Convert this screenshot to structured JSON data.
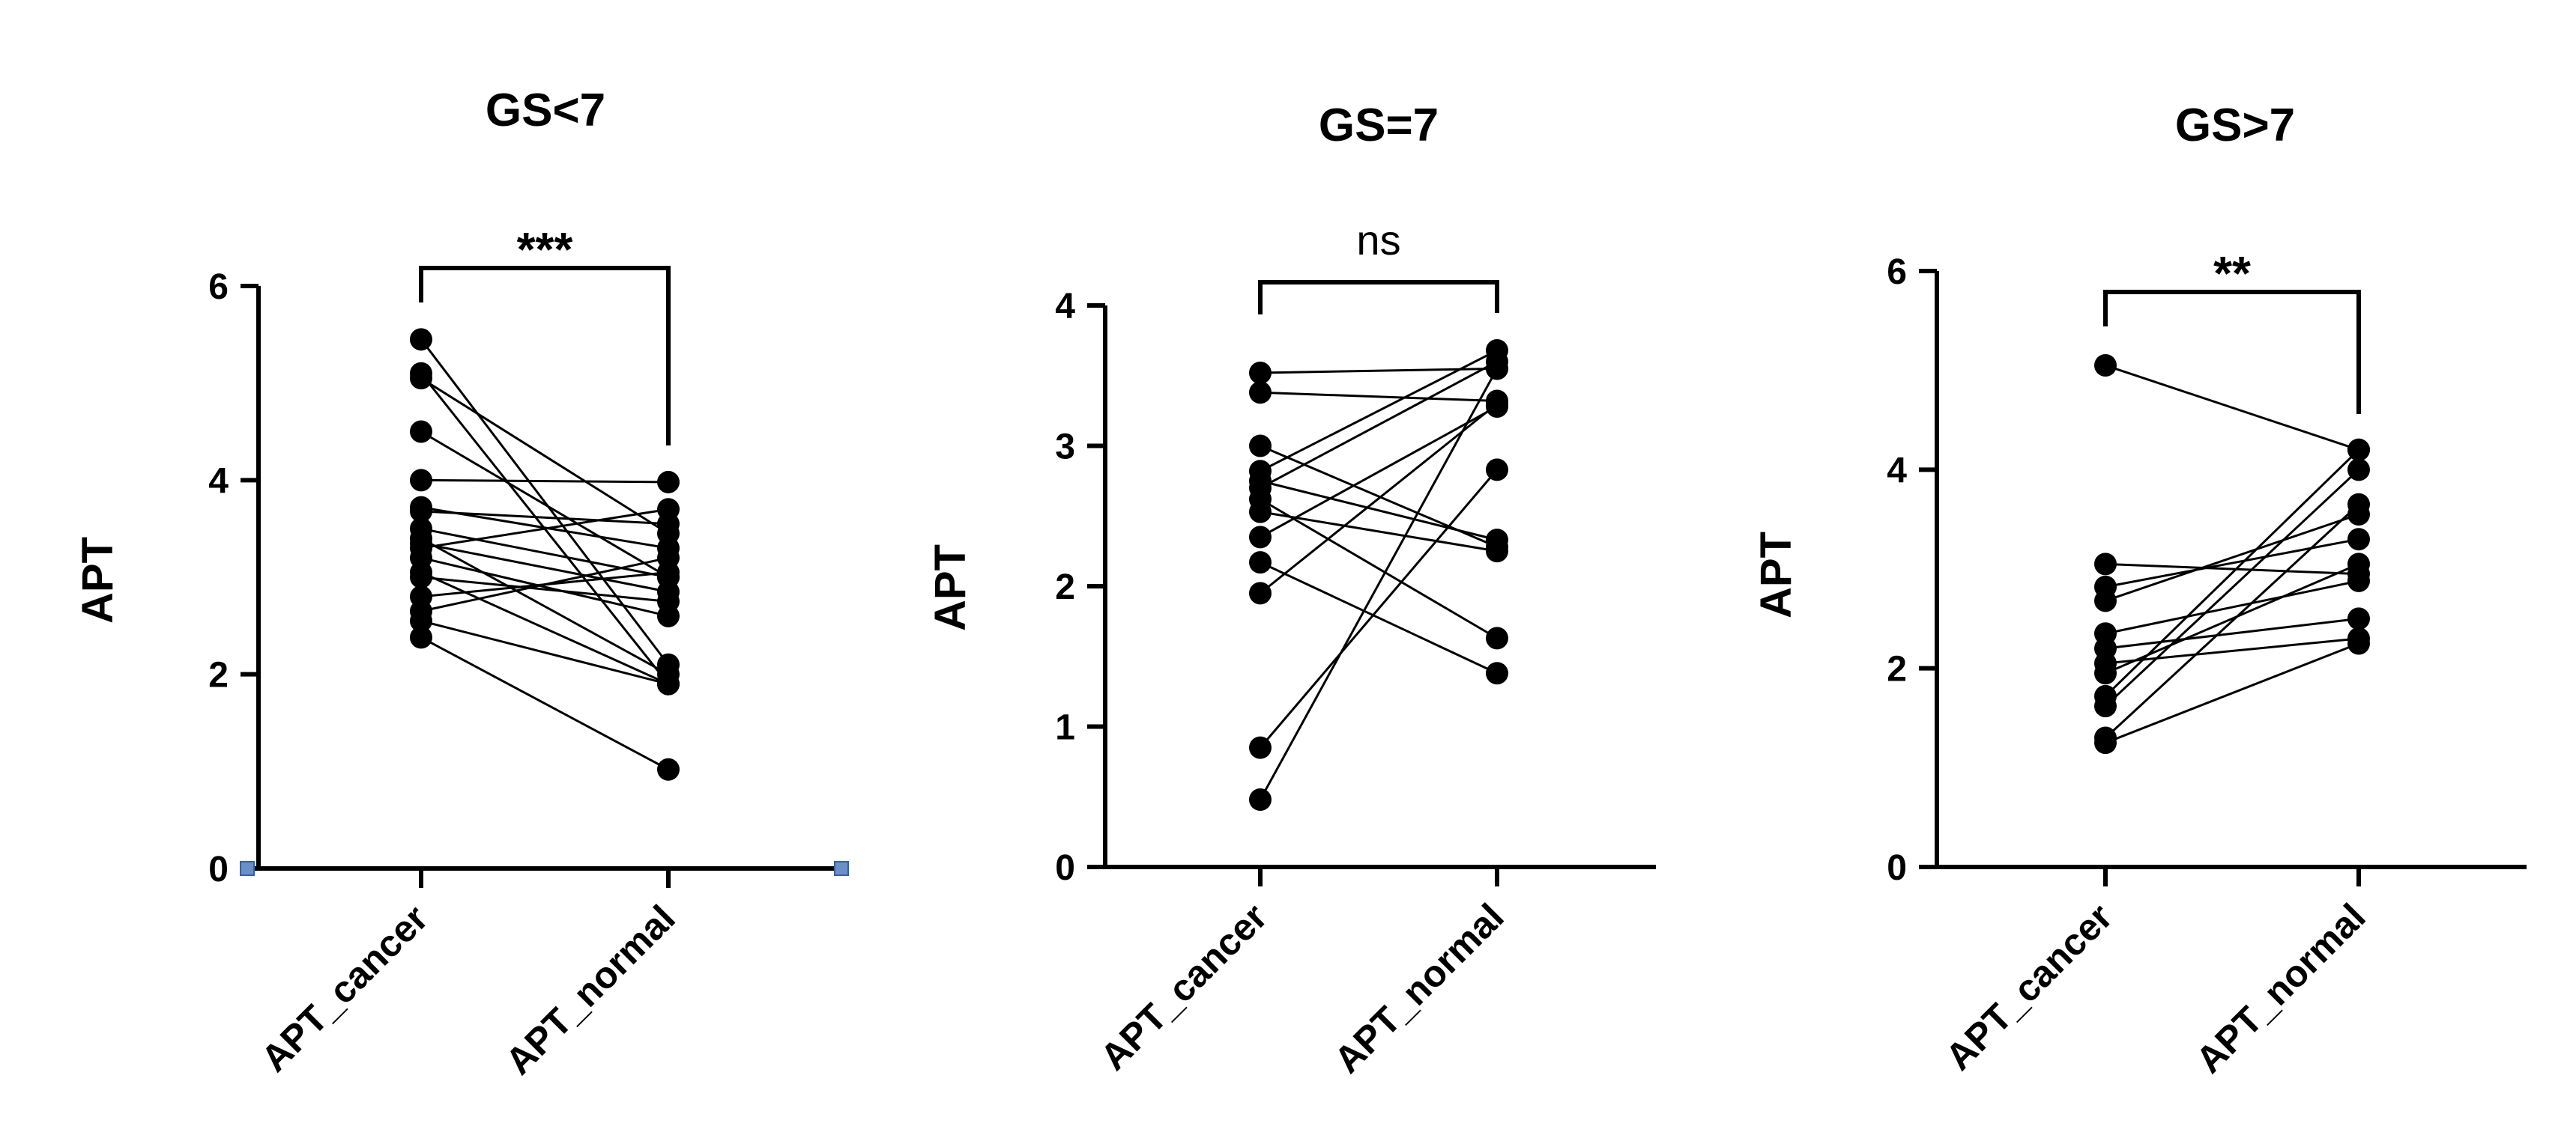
{
  "chart_data": [
    {
      "type": "scatter",
      "title": "GS<7",
      "ylabel": "APT",
      "xlabel": "",
      "categories": [
        "APT_cancer",
        "APT_normal"
      ],
      "ylim": [
        0,
        6
      ],
      "yticks": [
        0,
        2,
        4,
        6
      ],
      "significance": "***",
      "pairs": [
        [
          5.45,
          2.1
        ],
        [
          5.1,
          1.9
        ],
        [
          5.05,
          3.45
        ],
        [
          4.5,
          3.0
        ],
        [
          4.0,
          3.98
        ],
        [
          3.72,
          3.3
        ],
        [
          3.68,
          3.55
        ],
        [
          3.5,
          3.0
        ],
        [
          3.4,
          2.0
        ],
        [
          3.35,
          2.85
        ],
        [
          3.3,
          3.7
        ],
        [
          3.2,
          2.6
        ],
        [
          3.05,
          1.9
        ],
        [
          3.0,
          2.75
        ],
        [
          2.8,
          3.05
        ],
        [
          2.65,
          3.2
        ],
        [
          2.55,
          1.9
        ],
        [
          2.38,
          1.02
        ]
      ]
    },
    {
      "type": "scatter",
      "title": "GS=7",
      "ylabel": "APT",
      "xlabel": "",
      "categories": [
        "APT_cancer",
        "APT_normal"
      ],
      "ylim": [
        0,
        4
      ],
      "yticks": [
        0,
        1,
        2,
        3,
        4
      ],
      "significance": "ns",
      "pairs": [
        [
          3.52,
          3.55
        ],
        [
          3.38,
          3.32
        ],
        [
          3.0,
          2.28
        ],
        [
          2.82,
          3.68
        ],
        [
          2.75,
          2.33
        ],
        [
          2.7,
          3.6
        ],
        [
          2.62,
          1.63
        ],
        [
          2.53,
          2.25
        ],
        [
          2.35,
          3.28
        ],
        [
          2.17,
          1.38
        ],
        [
          1.95,
          3.3
        ],
        [
          0.85,
          2.83
        ],
        [
          0.48,
          3.55
        ]
      ]
    },
    {
      "type": "scatter",
      "title": "GS>7",
      "ylabel": "APT",
      "xlabel": "",
      "categories": [
        "APT_cancer",
        "APT_normal"
      ],
      "ylim": [
        0,
        6
      ],
      "yticks": [
        0,
        2,
        4,
        6
      ],
      "significance": "**",
      "pairs": [
        [
          5.05,
          4.2
        ],
        [
          3.05,
          2.95
        ],
        [
          2.82,
          3.3
        ],
        [
          2.68,
          3.55
        ],
        [
          2.35,
          2.88
        ],
        [
          2.2,
          2.5
        ],
        [
          2.05,
          2.3
        ],
        [
          1.95,
          3.05
        ],
        [
          1.72,
          4.2
        ],
        [
          1.62,
          4.0
        ],
        [
          1.3,
          3.65
        ],
        [
          1.25,
          2.25
        ]
      ]
    }
  ]
}
